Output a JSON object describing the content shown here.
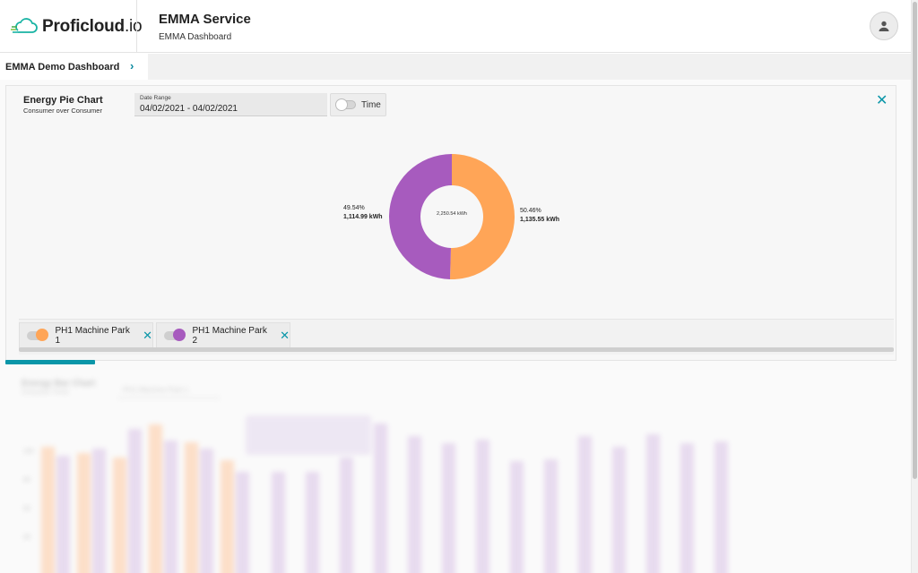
{
  "header": {
    "brand": "Proficloud",
    "brand_suffix": ".io",
    "service_title": "EMMA Service",
    "service_subtitle": "EMMA Dashboard"
  },
  "dashboard_tab": {
    "label": "EMMA Demo Dashboard",
    "arrow": "›"
  },
  "pie_card": {
    "title": "Energy Pie Chart",
    "subtitle": "Consumer over Consumer",
    "date_range_label": "Date Range",
    "date_range_value": "04/02/2021 - 04/02/2021",
    "time_toggle_label": "Time",
    "close_symbol": "✕",
    "center_total": "2,250.54 kWh",
    "legend": [
      {
        "label": "PH1 Machine Park 1",
        "color": "#FFA557"
      },
      {
        "label": "PH1 Machine Park 2",
        "color": "#A75BBE"
      }
    ]
  },
  "chart_data": {
    "type": "pie",
    "variant": "donut",
    "title": "Energy Pie Chart",
    "subtitle": "Consumer over Consumer",
    "center_label": "2,250.54 kWh",
    "slices": [
      {
        "name": "PH1 Machine Park 1",
        "percent": 50.46,
        "percent_label": "50.46%",
        "value": 1135.55,
        "value_label": "1,135.55 kWh",
        "color": "#FFA557"
      },
      {
        "name": "PH1 Machine Park 2",
        "percent": 49.54,
        "percent_label": "49.54%",
        "value": 1114.99,
        "value_label": "1,114.99 kWh",
        "color": "#A75BBE"
      }
    ]
  },
  "background_card": {
    "title": "Energy Bar Chart",
    "subtitle": "Consumer Trend",
    "select_value": "PH1 Machine Park 1",
    "y_ticks": [
      "100",
      "80",
      "60",
      "40"
    ],
    "colors": {
      "orange": "#FFC9A0",
      "purple": "#D9C2E6"
    }
  }
}
